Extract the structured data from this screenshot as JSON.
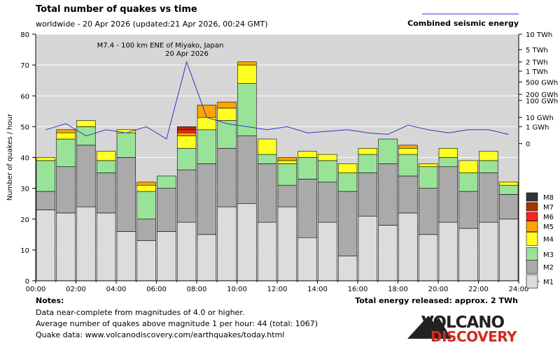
{
  "header": {
    "title": "Total number of quakes vs time",
    "subtitle": "worldwide - 20 Apr 2026 (updated:21 Apr 2026, 00:24 GMT)",
    "energy_legend_label": "Combined seismic energy"
  },
  "annotation": {
    "line1": "M7.4 - 100 km ENE of Miyako, Japan",
    "line2": "20 Apr 2026"
  },
  "notes": {
    "heading": "Notes:",
    "line1": "Data near-complete from magnitudes of 4.0 or higher.",
    "line2": "Average number of quakes above magnitude 1 per hour: 44 (total: 1067)",
    "line3": "Quake data: www.volcanodiscovery.com/earthquakes/today.html",
    "total_energy": "Total energy released: approx. 2 TWh"
  },
  "logo": {
    "line1": "VOLCANO",
    "line2": "DISCOVERY"
  },
  "colors": {
    "M1": "#dcdcdc",
    "M2": "#aaaaaa",
    "M3": "#99e399",
    "M4": "#ffff22",
    "M5": "#ffa500",
    "M6": "#ff2222",
    "M7": "#aa3300",
    "M8": "#333333",
    "energy_line": "#3333cc",
    "plot_bg": "#d6d6d6",
    "logo_red": "#d42a1e"
  },
  "chart_data": {
    "type": "bar",
    "stacked": true,
    "ylabel": "Number of quakes / hour",
    "ylim": [
      0,
      80
    ],
    "y_ticks": [
      0,
      10,
      20,
      30,
      40,
      50,
      60,
      70,
      80
    ],
    "x_tick_labels": [
      "00:00",
      "02:00",
      "04:00",
      "06:00",
      "08:00",
      "10:00",
      "12:00",
      "14:00",
      "16:00",
      "18:00",
      "20:00",
      "22:00",
      "24:00"
    ],
    "hours": [
      0,
      1,
      2,
      3,
      4,
      5,
      6,
      7,
      8,
      9,
      10,
      11,
      12,
      13,
      14,
      15,
      16,
      17,
      18,
      19,
      20,
      21,
      22,
      23
    ],
    "series": [
      {
        "name": "M1",
        "values": [
          23,
          22,
          24,
          22,
          16,
          13,
          16,
          19,
          15,
          24,
          25,
          19,
          24,
          14,
          19,
          8,
          21,
          18,
          22,
          15,
          19,
          17,
          19,
          20
        ]
      },
      {
        "name": "M2",
        "values": [
          6,
          15,
          20,
          13,
          24,
          7,
          14,
          17,
          23,
          19,
          22,
          19,
          7,
          19,
          13,
          21,
          14,
          20,
          12,
          15,
          18,
          12,
          16,
          8
        ]
      },
      {
        "name": "M3",
        "values": [
          10,
          9,
          6,
          4,
          8,
          9,
          4,
          7,
          11,
          9,
          17,
          3,
          7,
          7,
          7,
          6,
          6,
          8,
          7,
          7,
          3,
          6,
          4,
          3
        ]
      },
      {
        "name": "M4",
        "values": [
          1,
          2,
          2,
          3,
          1,
          2,
          0,
          4,
          4,
          4,
          6,
          5,
          1,
          2,
          2,
          3,
          2,
          0,
          2,
          1,
          3,
          4,
          3,
          1
        ]
      },
      {
        "name": "M5",
        "values": [
          0,
          1,
          0,
          0,
          0,
          1,
          0,
          1,
          4,
          2,
          1,
          0,
          1,
          0,
          0,
          0,
          0,
          0,
          1,
          0,
          0,
          0,
          0,
          0
        ]
      },
      {
        "name": "M6",
        "values": [
          0,
          0,
          0,
          0,
          0,
          0,
          0,
          1,
          0,
          0,
          0,
          0,
          0,
          0,
          0,
          0,
          0,
          0,
          0,
          0,
          0,
          0,
          0,
          0
        ]
      },
      {
        "name": "M7",
        "values": [
          0,
          0,
          0,
          0,
          0,
          0,
          0,
          1,
          0,
          0,
          0,
          0,
          0,
          0,
          0,
          0,
          0,
          0,
          0,
          0,
          0,
          0,
          0,
          0
        ]
      },
      {
        "name": "M8",
        "values": [
          0,
          0,
          0,
          0,
          0,
          0,
          0,
          0,
          0,
          0,
          0,
          0,
          0,
          0,
          0,
          0,
          0,
          0,
          0,
          0,
          0,
          0,
          0,
          0
        ]
      }
    ],
    "legend": [
      "M8",
      "M7",
      "M6",
      "M5",
      "M4",
      "M3",
      "M2",
      "M1"
    ],
    "energy_axis": {
      "ticks": [
        "10 TWh",
        "5 TWh",
        "2 TWh",
        "1 TWh",
        "500 GWh",
        "200 GWh",
        "100 GWh",
        "10 GWh",
        "1 GWh",
        "0"
      ],
      "tick_equiv_quakes": [
        80,
        75,
        71,
        68,
        64.5,
        60.5,
        58.5,
        53,
        50,
        44.5
      ]
    },
    "energy_series": {
      "name": "Combined seismic energy",
      "equiv_quakes": [
        49,
        51,
        47,
        49,
        48,
        50,
        46,
        71,
        53,
        51,
        50,
        49,
        50,
        48,
        48.5,
        49,
        48,
        47.5,
        50.5,
        49,
        48,
        49,
        49,
        47.5
      ]
    }
  }
}
